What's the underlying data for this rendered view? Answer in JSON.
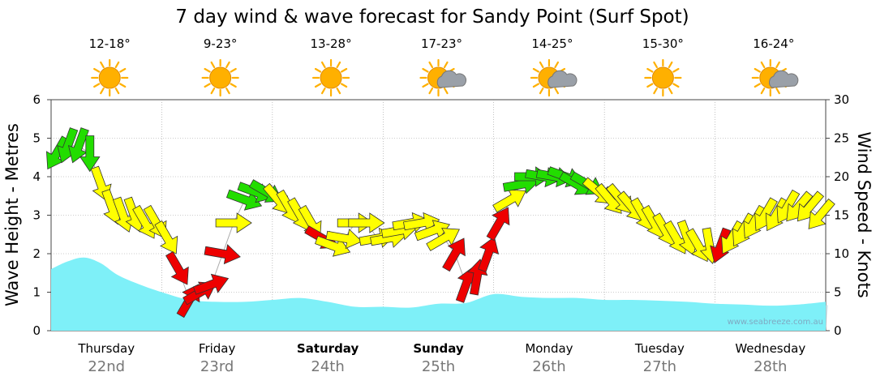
{
  "title": "7 day wind & wave forecast for Sandy Point  (Surf Spot)",
  "watermark": "www.seabreeze.com.au",
  "colors": {
    "wave_fill": "#7ef0f8",
    "wave_shadow": "#b9dde6",
    "arrow_light": "#ffff00",
    "arrow_moderate": "#22dd00",
    "arrow_strong": "#ee0000",
    "sun": "#ffb000",
    "cloud": "#9aa0a8",
    "grid": "#999999"
  },
  "days": [
    {
      "name": "Thursday",
      "date": "22nd",
      "bold": false,
      "temp": "12-18°",
      "weather_icon": "sun-icon"
    },
    {
      "name": "Friday",
      "date": "23rd",
      "bold": false,
      "temp": "9-23°",
      "weather_icon": "sun-icon"
    },
    {
      "name": "Saturday",
      "date": "24th",
      "bold": true,
      "temp": "13-28°",
      "weather_icon": "sun-icon"
    },
    {
      "name": "Sunday",
      "date": "25th",
      "bold": true,
      "temp": "17-23°",
      "weather_icon": "partly-cloudy-icon"
    },
    {
      "name": "Monday",
      "date": "26th",
      "bold": false,
      "temp": "14-25°",
      "weather_icon": "partly-cloudy-icon"
    },
    {
      "name": "Tuesday",
      "date": "27th",
      "bold": false,
      "temp": "15-30°",
      "weather_icon": "sun-icon"
    },
    {
      "name": "Wednesday",
      "date": "28th",
      "bold": false,
      "temp": "16-24°",
      "weather_icon": "partly-cloudy-icon"
    }
  ],
  "chart_data": {
    "type": "area",
    "ylabel_left": "Wave Height - Metres",
    "ylabel_right": "Wind Speed - Knots",
    "ylim_left": [
      0,
      6
    ],
    "yticks_left": [
      0,
      1,
      2,
      3,
      4,
      5,
      6
    ],
    "ylim_right": [
      0,
      30
    ],
    "yticks_right": [
      0,
      5,
      10,
      15,
      20,
      25,
      30
    ],
    "grid": true,
    "x_unit": "days since start of Thursday 22nd",
    "xlim": [
      0,
      7
    ],
    "wave_height": {
      "name": "Wave Height",
      "x": [
        0,
        0.15,
        0.3,
        0.45,
        0.6,
        0.8,
        1.0,
        1.25,
        1.5,
        1.75,
        2.0,
        2.25,
        2.5,
        2.75,
        3.0,
        3.25,
        3.5,
        3.75,
        4.0,
        4.25,
        4.5,
        4.75,
        5.0,
        5.25,
        5.5,
        5.75,
        6.0,
        6.25,
        6.5,
        6.75,
        7.0
      ],
      "values": [
        1.6,
        1.8,
        1.9,
        1.75,
        1.45,
        1.2,
        1.0,
        0.8,
        0.75,
        0.75,
        0.8,
        0.85,
        0.75,
        0.62,
        0.62,
        0.6,
        0.7,
        0.72,
        0.95,
        0.88,
        0.85,
        0.85,
        0.8,
        0.8,
        0.78,
        0.75,
        0.7,
        0.68,
        0.65,
        0.68,
        0.75
      ]
    },
    "wind": {
      "name": "Wind Speed",
      "x": [
        0.0,
        0.1,
        0.2,
        0.3,
        0.4,
        0.5,
        0.6,
        0.7,
        0.8,
        0.9,
        1.0,
        1.1,
        1.2,
        1.3,
        1.4,
        1.5,
        1.6,
        1.7,
        1.8,
        1.9,
        2.0,
        2.1,
        2.2,
        2.3,
        2.4,
        2.5,
        2.6,
        2.7,
        2.8,
        2.9,
        3.0,
        3.1,
        3.2,
        3.3,
        3.4,
        3.5,
        3.6,
        3.7,
        3.8,
        3.9,
        4.0,
        4.1,
        4.2,
        4.3,
        4.4,
        4.5,
        4.6,
        4.7,
        4.8,
        4.9,
        5.0,
        5.1,
        5.2,
        5.3,
        5.4,
        5.5,
        5.6,
        5.7,
        5.8,
        5.9,
        6.0,
        6.1,
        6.2,
        6.3,
        6.4,
        6.5,
        6.6,
        6.7,
        6.8,
        6.9
      ],
      "speed_knots": [
        23,
        24,
        24,
        23,
        19,
        16,
        15,
        15,
        14,
        14,
        12,
        8,
        4,
        5,
        6,
        10,
        14,
        17,
        18,
        18,
        17,
        16,
        15,
        14,
        12,
        11,
        12,
        14,
        14,
        12,
        12,
        13,
        14,
        14,
        13,
        12,
        10,
        6,
        7,
        10,
        14,
        17,
        19,
        20,
        20,
        20,
        20,
        19,
        19,
        18,
        17,
        17,
        16,
        15,
        14,
        13,
        12,
        12,
        11,
        11,
        11,
        12,
        13,
        14,
        15,
        15,
        16,
        16,
        16,
        15
      ],
      "strength": [
        "moderate",
        "moderate",
        "moderate",
        "moderate",
        "light",
        "light",
        "light",
        "light",
        "light",
        "light",
        "light",
        "strong",
        "strong",
        "strong",
        "strong",
        "strong",
        "light",
        "moderate",
        "moderate",
        "moderate",
        "light",
        "light",
        "light",
        "light",
        "strong",
        "light",
        "light",
        "light",
        "light",
        "light",
        "light",
        "light",
        "light",
        "light",
        "light",
        "light",
        "strong",
        "strong",
        "strong",
        "strong",
        "strong",
        "light",
        "moderate",
        "moderate",
        "moderate",
        "moderate",
        "moderate",
        "moderate",
        "moderate",
        "light",
        "light",
        "light",
        "light",
        "light",
        "light",
        "light",
        "light",
        "light",
        "light",
        "light",
        "strong",
        "light",
        "light",
        "light",
        "light",
        "light",
        "light",
        "light",
        "light",
        "light"
      ],
      "arrow_direction_deg": [
        210,
        200,
        200,
        180,
        160,
        160,
        160,
        160,
        150,
        150,
        150,
        150,
        30,
        60,
        70,
        100,
        90,
        110,
        110,
        120,
        140,
        150,
        150,
        150,
        120,
        110,
        100,
        90,
        90,
        80,
        80,
        80,
        80,
        80,
        70,
        60,
        30,
        20,
        10,
        20,
        30,
        60,
        80,
        90,
        100,
        100,
        110,
        120,
        120,
        130,
        140,
        140,
        140,
        150,
        150,
        150,
        150,
        160,
        150,
        170,
        200,
        210,
        210,
        210,
        210,
        210,
        210,
        220,
        220,
        220
      ]
    }
  }
}
